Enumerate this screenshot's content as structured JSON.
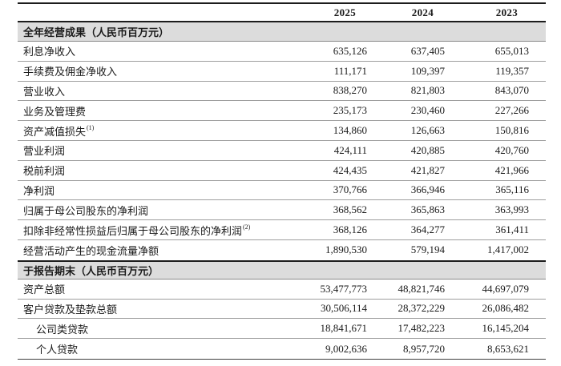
{
  "colors": {
    "section_band": "#dcdcdc",
    "thick_rule": "#1c1c1c",
    "thin_rule": "#9e9e9e"
  },
  "table": {
    "columns": [
      "2025",
      "2024",
      "2023"
    ],
    "sections": [
      {
        "title": "全年经营成果（人民币百万元）",
        "rows": [
          {
            "label": "利息净收入",
            "sup": "",
            "indent": false,
            "values": [
              "635,126",
              "637,405",
              "655,013"
            ]
          },
          {
            "label": "手续费及佣金净收入",
            "sup": "",
            "indent": false,
            "values": [
              "111,171",
              "109,397",
              "119,357"
            ]
          },
          {
            "label": "营业收入",
            "sup": "",
            "indent": false,
            "values": [
              "838,270",
              "821,803",
              "843,070"
            ]
          },
          {
            "label": "业务及管理费",
            "sup": "",
            "indent": false,
            "values": [
              "235,173",
              "230,460",
              "227,266"
            ]
          },
          {
            "label": "资产减值损失",
            "sup": "(1)",
            "indent": false,
            "values": [
              "134,860",
              "126,663",
              "150,816"
            ]
          },
          {
            "label": "营业利润",
            "sup": "",
            "indent": false,
            "values": [
              "424,111",
              "420,885",
              "420,760"
            ]
          },
          {
            "label": "税前利润",
            "sup": "",
            "indent": false,
            "values": [
              "424,435",
              "421,827",
              "421,966"
            ]
          },
          {
            "label": "净利润",
            "sup": "",
            "indent": false,
            "values": [
              "370,766",
              "366,946",
              "365,116"
            ]
          },
          {
            "label": "归属于母公司股东的净利润",
            "sup": "",
            "indent": false,
            "values": [
              "368,562",
              "365,863",
              "363,993"
            ]
          },
          {
            "label": "扣除非经常性损益后归属于母公司股东的净利润",
            "sup": "(2)",
            "indent": false,
            "values": [
              "368,126",
              "364,277",
              "361,411"
            ]
          },
          {
            "label": "经营活动产生的现金流量净额",
            "sup": "",
            "indent": false,
            "values": [
              "1,890,530",
              "579,194",
              "1,417,002"
            ]
          }
        ]
      },
      {
        "title": "于报告期末（人民币百万元）",
        "rows": [
          {
            "label": "资产总额",
            "sup": "",
            "indent": false,
            "values": [
              "53,477,773",
              "48,821,746",
              "44,697,079"
            ]
          },
          {
            "label": "客户贷款及垫款总额",
            "sup": "",
            "indent": false,
            "values": [
              "30,506,114",
              "28,372,229",
              "26,086,482"
            ]
          },
          {
            "label": "公司类贷款",
            "sup": "",
            "indent": true,
            "values": [
              "18,841,671",
              "17,482,223",
              "16,145,204"
            ]
          },
          {
            "label": "个人贷款",
            "sup": "",
            "indent": true,
            "values": [
              "9,002,636",
              "8,957,720",
              "8,653,621"
            ]
          }
        ]
      }
    ]
  }
}
